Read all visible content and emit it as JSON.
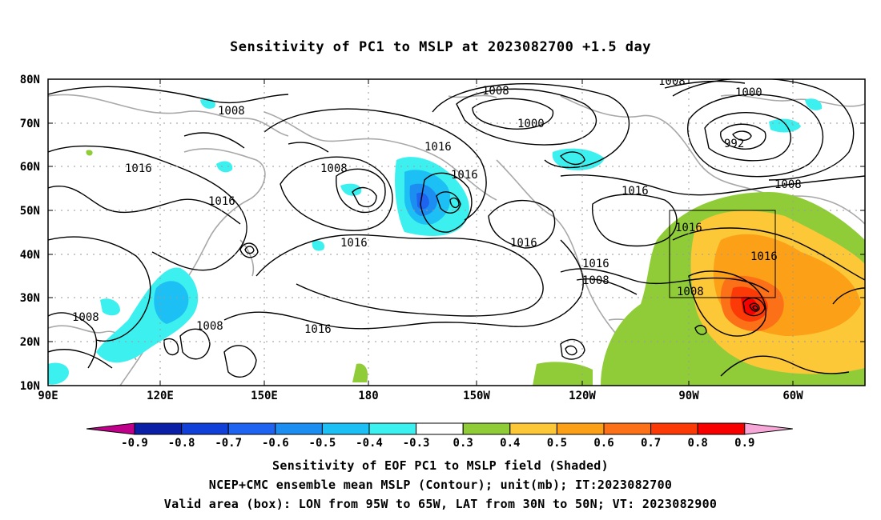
{
  "title": "Sensitivity of PC1 to MSLP at 2023082700 +1.5 day",
  "lat_labels": [
    "80N",
    "70N",
    "60N",
    "50N",
    "40N",
    "30N",
    "20N",
    "10N"
  ],
  "lon_labels": [
    "90E",
    "120E",
    "150E",
    "180",
    "150W",
    "120W",
    "90W",
    "60W"
  ],
  "colorbar": {
    "labels": [
      "-0.9",
      "-0.8",
      "-0.7",
      "-0.6",
      "-0.5",
      "-0.4",
      "-0.3",
      "0.3",
      "0.4",
      "0.5",
      "0.6",
      "0.7",
      "0.8",
      "0.9"
    ],
    "colors": [
      "#c0008a",
      "#0a1ea6",
      "#1040d8",
      "#1e64f0",
      "#1c8ef2",
      "#1cc0f4",
      "#3cf0f0",
      "#ffffff",
      "#90cc38",
      "#fcc838",
      "#fca018",
      "#fc7018",
      "#fc3a08",
      "#f80000",
      "#f8a8d8"
    ]
  },
  "contour_labels": [
    {
      "text": "1008"
    },
    {
      "text": "1016"
    },
    {
      "text": "1016"
    },
    {
      "text": "1008"
    },
    {
      "text": "1016"
    },
    {
      "text": "1016"
    },
    {
      "text": "1008"
    },
    {
      "text": "1000"
    },
    {
      "text": "1016"
    },
    {
      "text": "1016"
    },
    {
      "text": "1016"
    },
    {
      "text": "1008"
    },
    {
      "text": "1016"
    },
    {
      "text": "1008"
    },
    {
      "text": "1000"
    },
    {
      "text": "992"
    },
    {
      "text": "1008"
    },
    {
      "text": "1008"
    },
    {
      "text": "1016"
    },
    {
      "text": "1016"
    },
    {
      "text": "1008"
    },
    {
      "text": "1008"
    },
    {
      "text": "1016"
    }
  ],
  "caption": {
    "line1": "Sensitivity of EOF PC1 to MSLP field (Shaded)",
    "line2": "NCEP+CMC ensemble mean MSLP (Contour); unit(mb); IT:2023082700",
    "line3": "Valid area (box): LON from 95W to 65W, LAT from 30N to 50N; VT: 2023082900"
  }
}
